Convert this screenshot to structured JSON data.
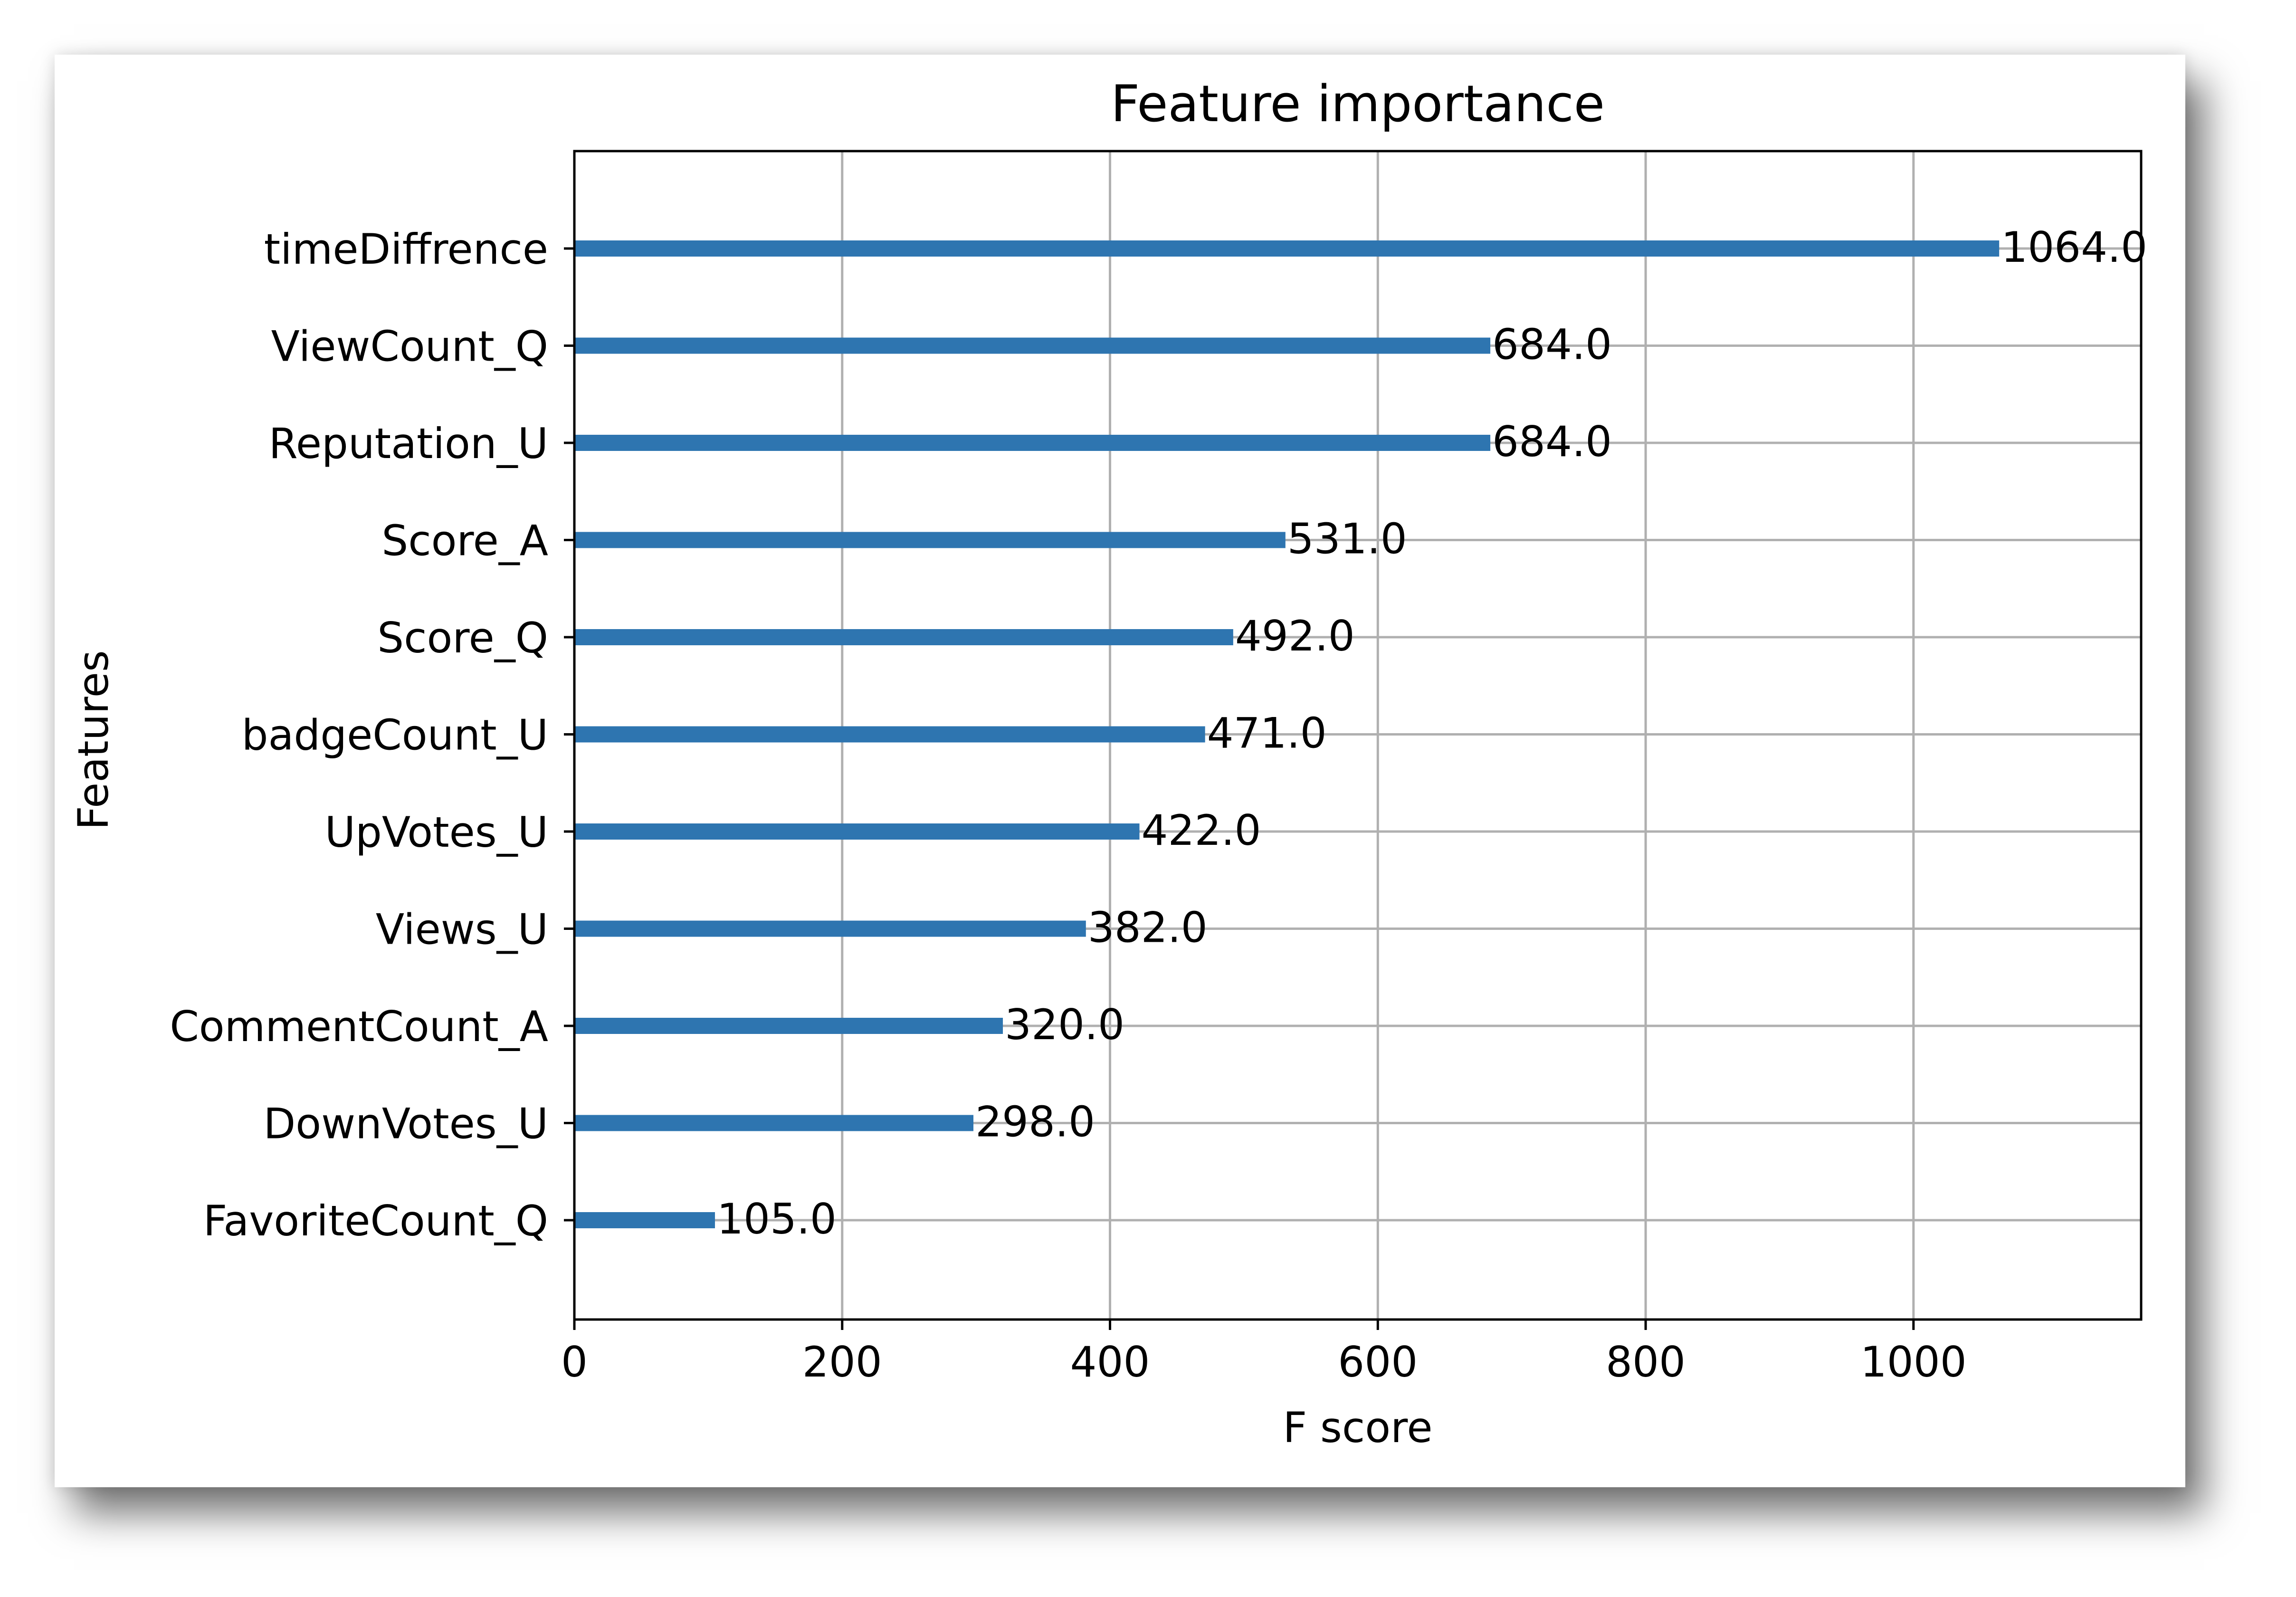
{
  "chart_data": {
    "type": "bar",
    "orientation": "horizontal",
    "title": "Feature importance",
    "xlabel": "F score",
    "ylabel": "Features",
    "xlim": [
      0,
      1170
    ],
    "xticks": [
      0,
      200,
      400,
      600,
      800,
      1000
    ],
    "grid": true,
    "categories": [
      "timeDiffrence",
      "ViewCount_Q",
      "Reputation_U",
      "Score_A",
      "Score_Q",
      "badgeCount_U",
      "UpVotes_U",
      "Views_U",
      "CommentCount_A",
      "DownVotes_U",
      "FavoriteCount_Q"
    ],
    "values": [
      1064,
      684,
      684,
      531,
      492,
      471,
      422,
      382,
      320,
      298,
      105
    ],
    "value_labels": [
      "1064.0",
      "684.0",
      "684.0",
      "531.0",
      "492.0",
      "471.0",
      "422.0",
      "382.0",
      "320.0",
      "298.0",
      "105.0"
    ],
    "bar_color": "#2e75b0",
    "grid_color": "#b0b0b0"
  }
}
